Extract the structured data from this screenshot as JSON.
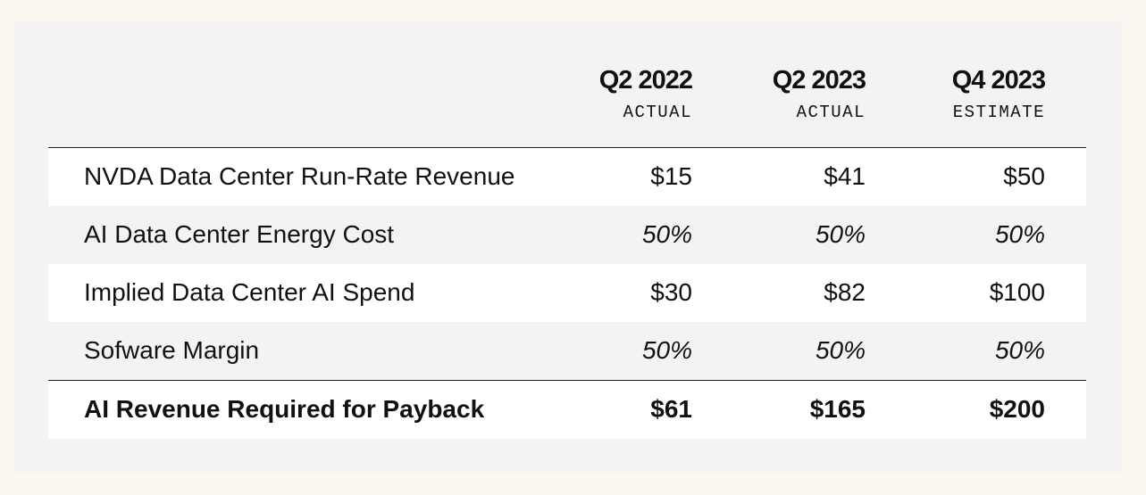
{
  "columns": [
    {
      "period": "Q2 2022",
      "type": "ACTUAL"
    },
    {
      "period": "Q2 2023",
      "type": "ACTUAL"
    },
    {
      "period": "Q4 2023",
      "type": "ESTIMATE"
    }
  ],
  "rows": [
    {
      "label": "NVDA Data Center Run-Rate Revenue",
      "values": [
        "$15",
        "$41",
        "$50"
      ]
    },
    {
      "label": "AI Data Center Energy Cost",
      "values": [
        "50%",
        "50%",
        "50%"
      ]
    },
    {
      "label": "Implied Data Center AI Spend",
      "values": [
        "$30",
        "$82",
        "$100"
      ]
    },
    {
      "label": "Sofware Margin",
      "values": [
        "50%",
        "50%",
        "50%"
      ]
    },
    {
      "label": "AI Revenue Required for Payback",
      "values": [
        "$61",
        "$165",
        "$200"
      ]
    }
  ]
}
